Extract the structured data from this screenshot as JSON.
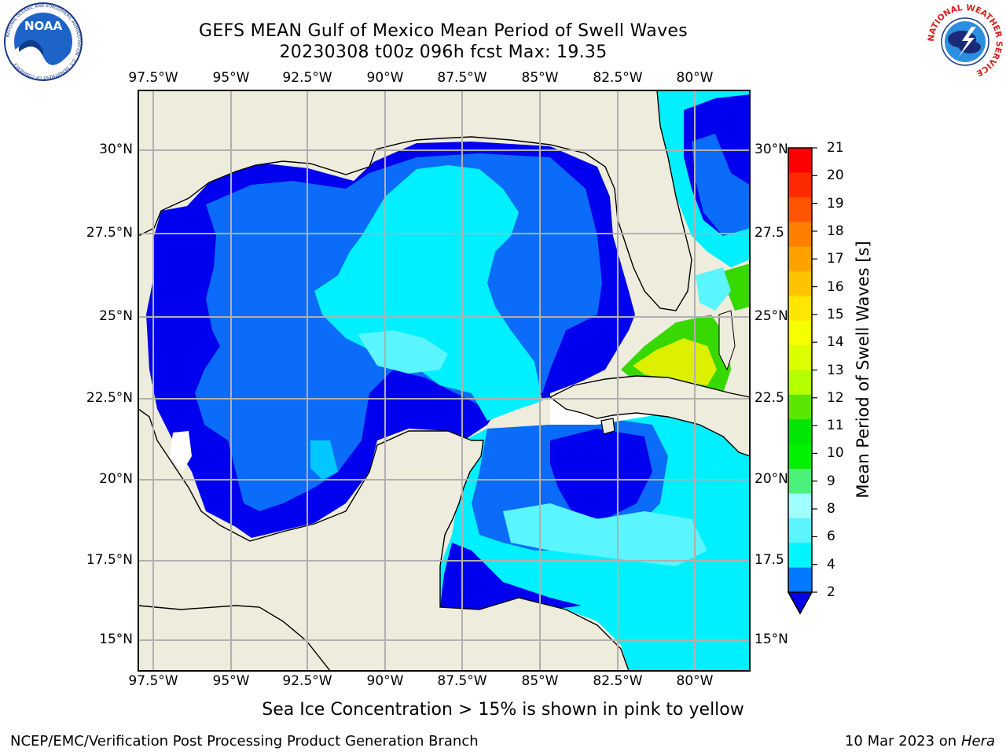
{
  "title_line1": "GEFS MEAN Gulf of Mexico Mean Period of Swell Waves",
  "title_line2": "20230308 t00z 096h fcst   Max: 19.35",
  "lon_labels": [
    "97.5°W",
    "95°W",
    "92.5°W",
    "90°W",
    "87.5°W",
    "85°W",
    "82.5°W",
    "80°W"
  ],
  "lat_labels_left": [
    "30°N",
    "27.5°N",
    "25°N",
    "22.5°N",
    "20°N",
    "17.5°N",
    "15°N"
  ],
  "lat_labels_right": [
    "30°N",
    "27.5",
    "25°N",
    "22.5",
    "20°N",
    "17.5",
    "15°N"
  ],
  "colorbar": {
    "title": "Mean Period of Swell Waves [s]",
    "ticks": [
      "21",
      "20",
      "19",
      "18",
      "17",
      "16",
      "15",
      "14",
      "13",
      "12",
      "11",
      "10",
      "9",
      "8",
      "6",
      "4",
      "2"
    ],
    "colors": [
      "#ff0000",
      "#ff2a00",
      "#ff5500",
      "#ff7f00",
      "#ffa200",
      "#ffc400",
      "#ffe600",
      "#f6ff00",
      "#dcff00",
      "#b4ff00",
      "#5ae600",
      "#00e600",
      "#00f000",
      "#4bf07a",
      "#a0ffff",
      "#5af5ff",
      "#00f5ff",
      "#0078ff"
    ],
    "extend_color": "#0000ee"
  },
  "ice_note": "Sea Ice Concentration > 15% is shown in pink to yellow",
  "credit": "NCEP/EMC/Verification Post Processing Product Generation Branch",
  "stamp_date": "10 Mar 2023 on",
  "stamp_host": "Hera",
  "logos": {
    "noaa_text": "NOAA",
    "noaa_ring": "NATIONAL OCEANIC AND ATMOSPHERIC ADMINISTRATION · U.S. DEPARTMENT OF COMMERCE",
    "nws_ring": "NATIONAL WEATHER SERVICE"
  },
  "colors": {
    "land": "#eeecdc",
    "sea_dark": "#0000ee",
    "sea_mid": "#0a6cf8",
    "sea_light": "#00f0ff",
    "sea_pale": "#5af5ff",
    "green": "#37d800",
    "yellow": "#dcf000",
    "orange": "#ffa500",
    "grid": "#b0b0b0"
  }
}
